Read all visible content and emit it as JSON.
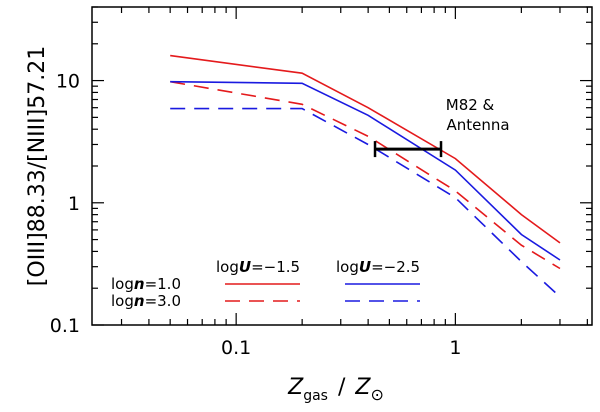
{
  "chart_data": {
    "type": "line",
    "x_scale": "log",
    "y_scale": "log",
    "xlim": [
      0.022,
      4.2
    ],
    "ylim": [
      0.1,
      40
    ],
    "ylabel": "[OIII]88.33/[NIII]57.21",
    "xlabel": {
      "z": "Z",
      "sub_gas": "gas",
      "slash": "/",
      "z2": "Z",
      "sun": "⊙"
    },
    "x_ticks": [
      {
        "value": 0.1,
        "label": "0.1"
      },
      {
        "value": 1,
        "label": "1"
      }
    ],
    "y_ticks": [
      {
        "value": 0.1,
        "label": "0.1"
      },
      {
        "value": 1,
        "label": "1"
      },
      {
        "value": 10,
        "label": "10"
      }
    ],
    "x": [
      0.05,
      0.2,
      0.4,
      1.0,
      2.0,
      3.0
    ],
    "series": [
      {
        "name": "logn=1.0, logU=-1.5",
        "color": "#e41a1c",
        "dash": "solid",
        "values": [
          16,
          11.5,
          6.0,
          2.3,
          0.8,
          0.47
        ]
      },
      {
        "name": "logn=3.0, logU=-1.5",
        "color": "#e41a1c",
        "dash": "dashed",
        "values": [
          9.8,
          6.4,
          3.5,
          1.25,
          0.45,
          0.29
        ]
      },
      {
        "name": "logn=1.0, logU=-2.5",
        "color": "#1a1ae0",
        "dash": "solid",
        "values": [
          9.8,
          9.5,
          5.2,
          1.85,
          0.55,
          0.34
        ]
      },
      {
        "name": "logn=3.0, logU=-2.5",
        "color": "#1a1ae0",
        "dash": "dashed",
        "values": [
          5.9,
          5.9,
          3.0,
          1.1,
          0.33,
          0.17
        ]
      }
    ],
    "range_marker": {
      "label_line1": "M82 &",
      "label_line2": "Antenna",
      "x_from": 0.43,
      "x_to": 0.86,
      "y": 2.75
    },
    "legend": {
      "placement": "bottom-left",
      "col1_header": {
        "prefix": "log",
        "var": "U",
        "value": "=−1.5"
      },
      "col2_header": {
        "prefix": "log",
        "var": "U",
        "value": "=−2.5"
      },
      "row1": {
        "prefix": "log",
        "var": "n",
        "value": "=1.0"
      },
      "row2": {
        "prefix": "log",
        "var": "n",
        "value": "=3.0"
      }
    }
  }
}
